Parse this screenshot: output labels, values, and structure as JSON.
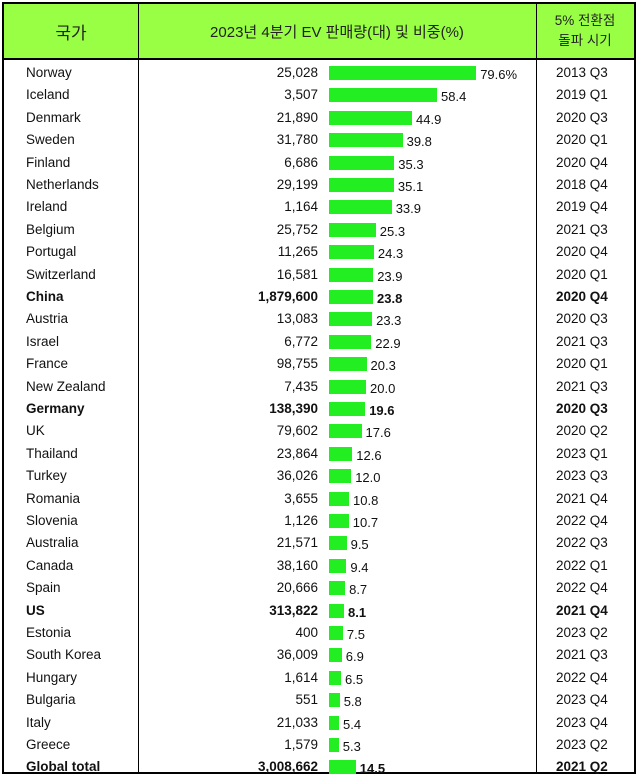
{
  "header": {
    "country": "국가",
    "title": "2023년 4분기 EV 판매량(대) 및 비중(%)",
    "year_line1": "5% 전환점",
    "year_line2": "돌파 시기"
  },
  "colors": {
    "header_bg": "#99ff44",
    "bar": "#22ee22"
  },
  "chart_data": {
    "type": "bar",
    "orientation": "horizontal",
    "xlim": [
      0,
      80
    ],
    "unit": "%",
    "rows": [
      {
        "country": "Norway",
        "sales": "25,028",
        "share": 79.6,
        "label": "79.6%",
        "quarter": "2013 Q3",
        "bold": false
      },
      {
        "country": "Iceland",
        "sales": "3,507",
        "share": 58.4,
        "label": "58.4",
        "quarter": "2019 Q1",
        "bold": false
      },
      {
        "country": "Denmark",
        "sales": "21,890",
        "share": 44.9,
        "label": "44.9",
        "quarter": "2020 Q3",
        "bold": false
      },
      {
        "country": "Sweden",
        "sales": "31,780",
        "share": 39.8,
        "label": "39.8",
        "quarter": "2020 Q1",
        "bold": false
      },
      {
        "country": "Finland",
        "sales": "6,686",
        "share": 35.3,
        "label": "35.3",
        "quarter": "2020 Q4",
        "bold": false
      },
      {
        "country": "Netherlands",
        "sales": "29,199",
        "share": 35.1,
        "label": "35.1",
        "quarter": "2018 Q4",
        "bold": false
      },
      {
        "country": "Ireland",
        "sales": "1,164",
        "share": 33.9,
        "label": "33.9",
        "quarter": "2019 Q4",
        "bold": false
      },
      {
        "country": "Belgium",
        "sales": "25,752",
        "share": 25.3,
        "label": "25.3",
        "quarter": "2021 Q3",
        "bold": false
      },
      {
        "country": "Portugal",
        "sales": "11,265",
        "share": 24.3,
        "label": "24.3",
        "quarter": "2020 Q4",
        "bold": false
      },
      {
        "country": "Switzerland",
        "sales": "16,581",
        "share": 23.9,
        "label": "23.9",
        "quarter": "2020 Q1",
        "bold": false
      },
      {
        "country": "China",
        "sales": "1,879,600",
        "share": 23.8,
        "label": "23.8",
        "quarter": "2020 Q4",
        "bold": true
      },
      {
        "country": "Austria",
        "sales": "13,083",
        "share": 23.3,
        "label": "23.3",
        "quarter": "2020 Q3",
        "bold": false
      },
      {
        "country": "Israel",
        "sales": "6,772",
        "share": 22.9,
        "label": "22.9",
        "quarter": "2021 Q3",
        "bold": false
      },
      {
        "country": "France",
        "sales": "98,755",
        "share": 20.3,
        "label": "20.3",
        "quarter": "2020 Q1",
        "bold": false
      },
      {
        "country": "New Zealand",
        "sales": "7,435",
        "share": 20.0,
        "label": "20.0",
        "quarter": "2021 Q3",
        "bold": false
      },
      {
        "country": "Germany",
        "sales": "138,390",
        "share": 19.6,
        "label": "19.6",
        "quarter": "2020 Q3",
        "bold": true
      },
      {
        "country": "UK",
        "sales": "79,602",
        "share": 17.6,
        "label": "17.6",
        "quarter": "2020 Q2",
        "bold": false
      },
      {
        "country": "Thailand",
        "sales": "23,864",
        "share": 12.6,
        "label": "12.6",
        "quarter": "2023 Q1",
        "bold": false
      },
      {
        "country": "Turkey",
        "sales": "36,026",
        "share": 12.0,
        "label": "12.0",
        "quarter": "2023 Q3",
        "bold": false
      },
      {
        "country": "Romania",
        "sales": "3,655",
        "share": 10.8,
        "label": "10.8",
        "quarter": "2021 Q4",
        "bold": false
      },
      {
        "country": "Slovenia",
        "sales": "1,126",
        "share": 10.7,
        "label": "10.7",
        "quarter": "2022 Q4",
        "bold": false
      },
      {
        "country": "Australia",
        "sales": "21,571",
        "share": 9.5,
        "label": "9.5",
        "quarter": "2022 Q3",
        "bold": false
      },
      {
        "country": "Canada",
        "sales": "38,160",
        "share": 9.4,
        "label": "9.4",
        "quarter": "2022 Q1",
        "bold": false
      },
      {
        "country": "Spain",
        "sales": "20,666",
        "share": 8.7,
        "label": "8.7",
        "quarter": "2022 Q4",
        "bold": false
      },
      {
        "country": "US",
        "sales": "313,822",
        "share": 8.1,
        "label": "8.1",
        "quarter": "2021 Q4",
        "bold": true
      },
      {
        "country": "Estonia",
        "sales": "400",
        "share": 7.5,
        "label": "7.5",
        "quarter": "2023 Q2",
        "bold": false
      },
      {
        "country": "South Korea",
        "sales": "36,009",
        "share": 6.9,
        "label": "6.9",
        "quarter": "2021 Q3",
        "bold": false
      },
      {
        "country": "Hungary",
        "sales": "1,614",
        "share": 6.5,
        "label": "6.5",
        "quarter": "2022 Q4",
        "bold": false
      },
      {
        "country": "Bulgaria",
        "sales": "551",
        "share": 5.8,
        "label": "5.8",
        "quarter": "2023 Q4",
        "bold": false
      },
      {
        "country": "Italy",
        "sales": "21,033",
        "share": 5.4,
        "label": "5.4",
        "quarter": "2023 Q4",
        "bold": false
      },
      {
        "country": "Greece",
        "sales": "1,579",
        "share": 5.3,
        "label": "5.3",
        "quarter": "2023 Q2",
        "bold": false
      },
      {
        "country": "Global total",
        "sales": "3,008,662",
        "share": 14.5,
        "label": "14.5",
        "quarter": "2021 Q2",
        "bold": true
      }
    ]
  }
}
